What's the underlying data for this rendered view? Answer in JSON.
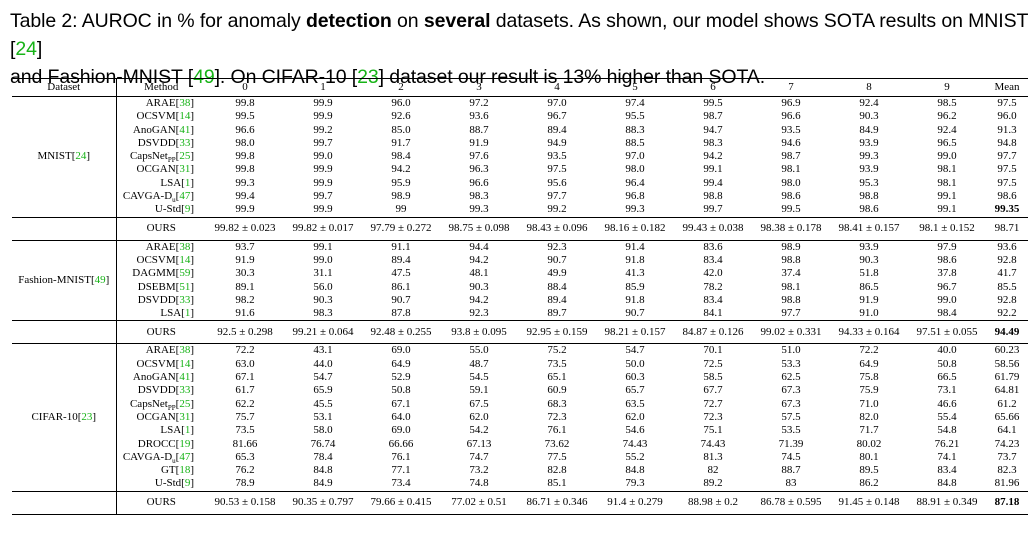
{
  "caption": {
    "prefix": "Table 2: AUROC in % for anomaly ",
    "bold1": "detection",
    "mid1": " on ",
    "bold2": "several",
    "mid2": " datasets. As shown, our model shows SOTA results on MNIST [",
    "cite1": "24",
    "mid3": "]",
    "line2a": "and Fashion-MNIST [",
    "cite2": "49",
    "line2b": "]. On CIFAR-10 [",
    "cite3": "23",
    "line2c": "] dataset our result is 13% higher than SOTA."
  },
  "table": {
    "headers": [
      "Dataset",
      "Method",
      "0",
      "1",
      "2",
      "3",
      "4",
      "5",
      "6",
      "7",
      "8",
      "9",
      "Mean"
    ],
    "sections": [
      {
        "dataset": "MNIST",
        "dataset_cite": "24",
        "rows": [
          {
            "method": "ARAE",
            "cite": "38",
            "values": [
              "99.8",
              "99.9",
              "96.0",
              "97.2",
              "97.0",
              "97.4",
              "99.5",
              "96.9",
              "92.4",
              "98.5",
              "97.5"
            ]
          },
          {
            "method": "OCSVM",
            "cite": "14",
            "values": [
              "99.5",
              "99.9",
              "92.6",
              "93.6",
              "96.7",
              "95.5",
              "98.7",
              "96.6",
              "90.3",
              "96.2",
              "96.0"
            ]
          },
          {
            "method": "AnoGAN",
            "cite": "41",
            "values": [
              "96.6",
              "99.2",
              "85.0",
              "88.7",
              "89.4",
              "88.3",
              "94.7",
              "93.5",
              "84.9",
              "92.4",
              "91.3"
            ]
          },
          {
            "method": "DSVDD",
            "cite": "33",
            "values": [
              "98.0",
              "99.7",
              "91.7",
              "91.9",
              "94.9",
              "88.5",
              "98.3",
              "94.6",
              "93.9",
              "96.5",
              "94.8"
            ]
          },
          {
            "method": "CapsNet",
            "sub": "PP",
            "cite": "25",
            "values": [
              "99.8",
              "99.0",
              "98.4",
              "97.6",
              "93.5",
              "97.0",
              "94.2",
              "98.7",
              "99.3",
              "99.0",
              "97.7"
            ]
          },
          {
            "method": "OCGAN",
            "cite": "31",
            "values": [
              "99.8",
              "99.9",
              "94.2",
              "96.3",
              "97.5",
              "98.0",
              "99.1",
              "98.1",
              "93.9",
              "98.1",
              "97.5"
            ]
          },
          {
            "method": "LSA",
            "cite": "1",
            "values": [
              "99.3",
              "99.9",
              "95.9",
              "96.6",
              "95.6",
              "96.4",
              "99.4",
              "98.0",
              "95.3",
              "98.1",
              "97.5"
            ]
          },
          {
            "method": "CAVGA-D",
            "sub": "u",
            "cite": "47",
            "values": [
              "99.4",
              "99.7",
              "98.9",
              "98.3",
              "97.7",
              "96.8",
              "98.8",
              "98.6",
              "98.8",
              "99.1",
              "98.6"
            ]
          },
          {
            "method": "U-Std",
            "cite": "9",
            "values": [
              "99.9",
              "99.9",
              "99",
              "99.3",
              "99.2",
              "99.3",
              "99.7",
              "99.5",
              "98.6",
              "99.1",
              "99.35"
            ],
            "bold_last": true
          }
        ],
        "ours": [
          "99.82 ± 0.023",
          "99.82 ± 0.017",
          "97.79 ± 0.272",
          "98.75 ± 0.098",
          "98.43 ± 0.096",
          "98.16 ± 0.182",
          "99.43 ± 0.038",
          "98.38 ± 0.178",
          "98.41 ± 0.157",
          "98.1 ± 0.152",
          "98.71"
        ],
        "ours_bold_last": false
      },
      {
        "dataset": "Fashion-MNIST",
        "dataset_cite": "49",
        "rows": [
          {
            "method": "ARAE",
            "cite": "38",
            "values": [
              "93.7",
              "99.1",
              "91.1",
              "94.4",
              "92.3",
              "91.4",
              "83.6",
              "98.9",
              "93.9",
              "97.9",
              "93.6"
            ]
          },
          {
            "method": "OCSVM",
            "cite": "14",
            "values": [
              "91.9",
              "99.0",
              "89.4",
              "94.2",
              "90.7",
              "91.8",
              "83.4",
              "98.8",
              "90.3",
              "98.6",
              "92.8"
            ]
          },
          {
            "method": "DAGMM",
            "cite": "59",
            "values": [
              "30.3",
              "31.1",
              "47.5",
              "48.1",
              "49.9",
              "41.3",
              "42.0",
              "37.4",
              "51.8",
              "37.8",
              "41.7"
            ]
          },
          {
            "method": "DSEBM",
            "cite": "51",
            "values": [
              "89.1",
              "56.0",
              "86.1",
              "90.3",
              "88.4",
              "85.9",
              "78.2",
              "98.1",
              "86.5",
              "96.7",
              "85.5"
            ]
          },
          {
            "method": "DSVDD",
            "cite": "33",
            "values": [
              "98.2",
              "90.3",
              "90.7",
              "94.2",
              "89.4",
              "91.8",
              "83.4",
              "98.8",
              "91.9",
              "99.0",
              "92.8"
            ]
          },
          {
            "method": "LSA",
            "cite": "1",
            "values": [
              "91.6",
              "98.3",
              "87.8",
              "92.3",
              "89.7",
              "90.7",
              "84.1",
              "97.7",
              "91.0",
              "98.4",
              "92.2"
            ]
          }
        ],
        "ours": [
          "92.5 ± 0.298",
          "99.21 ± 0.064",
          "92.48 ± 0.255",
          "93.8 ± 0.095",
          "92.95 ± 0.159",
          "98.21 ± 0.157",
          "84.87 ± 0.126",
          "99.02 ± 0.331",
          "94.33 ± 0.164",
          "97.51 ± 0.055",
          "94.49"
        ],
        "ours_bold_last": true
      },
      {
        "dataset": "CIFAR-10",
        "dataset_cite": "23",
        "rows": [
          {
            "method": "ARAE",
            "cite": "38",
            "values": [
              "72.2",
              "43.1",
              "69.0",
              "55.0",
              "75.2",
              "54.7",
              "70.1",
              "51.0",
              "72.2",
              "40.0",
              "60.23"
            ]
          },
          {
            "method": "OCSVM",
            "cite": "14",
            "values": [
              "63.0",
              "44.0",
              "64.9",
              "48.7",
              "73.5",
              "50.0",
              "72.5",
              "53.3",
              "64.9",
              "50.8",
              "58.56"
            ]
          },
          {
            "method": "AnoGAN",
            "cite": "41",
            "values": [
              "67.1",
              "54.7",
              "52.9",
              "54.5",
              "65.1",
              "60.3",
              "58.5",
              "62.5",
              "75.8",
              "66.5",
              "61.79"
            ]
          },
          {
            "method": "DSVDD",
            "cite": "33",
            "values": [
              "61.7",
              "65.9",
              "50.8",
              "59.1",
              "60.9",
              "65.7",
              "67.7",
              "67.3",
              "75.9",
              "73.1",
              "64.81"
            ]
          },
          {
            "method": "CapsNet",
            "sub": "PP",
            "cite": "25",
            "values": [
              "62.2",
              "45.5",
              "67.1",
              "67.5",
              "68.3",
              "63.5",
              "72.7",
              "67.3",
              "71.0",
              "46.6",
              "61.2"
            ]
          },
          {
            "method": "OCGAN",
            "cite": "31",
            "values": [
              "75.7",
              "53.1",
              "64.0",
              "62.0",
              "72.3",
              "62.0",
              "72.3",
              "57.5",
              "82.0",
              "55.4",
              "65.66"
            ]
          },
          {
            "method": "LSA",
            "cite": "1",
            "values": [
              "73.5",
              "58.0",
              "69.0",
              "54.2",
              "76.1",
              "54.6",
              "75.1",
              "53.5",
              "71.7",
              "54.8",
              "64.1"
            ]
          },
          {
            "method": "DROCC",
            "cite": "19",
            "values": [
              "81.66",
              "76.74",
              "66.66",
              "67.13",
              "73.62",
              "74.43",
              "74.43",
              "71.39",
              "80.02",
              "76.21",
              "74.23"
            ]
          },
          {
            "method": "CAVGA-D",
            "sub": "u",
            "cite": "47",
            "values": [
              "65.3",
              "78.4",
              "76.1",
              "74.7",
              "77.5",
              "55.2",
              "81.3",
              "74.5",
              "80.1",
              "74.1",
              "73.7"
            ]
          },
          {
            "method": "GT",
            "cite": "18",
            "values": [
              "76.2",
              "84.8",
              "77.1",
              "73.2",
              "82.8",
              "84.8",
              "82",
              "88.7",
              "89.5",
              "83.4",
              "82.3"
            ]
          },
          {
            "method": "U-Std",
            "cite": "9",
            "values": [
              "78.9",
              "84.9",
              "73.4",
              "74.8",
              "85.1",
              "79.3",
              "89.2",
              "83",
              "86.2",
              "84.8",
              "81.96"
            ]
          }
        ],
        "ours": [
          "90.53 ± 0.158",
          "90.35 ± 0.797",
          "79.66 ± 0.415",
          "77.02 ± 0.51",
          "86.71 ± 0.346",
          "91.4 ± 0.279",
          "88.98 ± 0.2",
          "86.78 ± 0.595",
          "91.45 ± 0.148",
          "88.91 ± 0.349",
          "87.18"
        ],
        "ours_bold_last": true
      }
    ],
    "ours_label": "OURS"
  },
  "colors": {
    "citation": "#17b317",
    "text": "#000000"
  }
}
